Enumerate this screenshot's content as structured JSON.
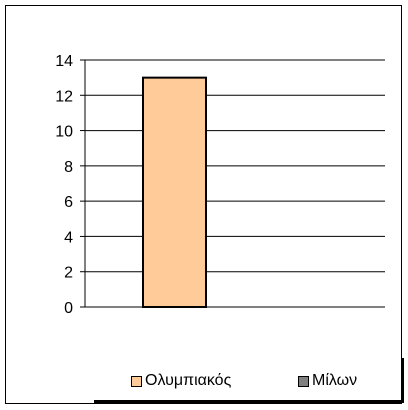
{
  "chart_data": {
    "type": "bar",
    "categories": [
      ""
    ],
    "series": [
      {
        "name": "Ολυμπιακός",
        "values": [
          13
        ],
        "color": "#FFCC99"
      },
      {
        "name": "Μίλων",
        "values": [
          0
        ],
        "color": "#808080"
      }
    ],
    "ylim": [
      0,
      14
    ],
    "yticks": [
      0,
      2,
      4,
      6,
      8,
      10,
      12,
      14
    ],
    "grid": true,
    "legend_position": "bottom"
  }
}
